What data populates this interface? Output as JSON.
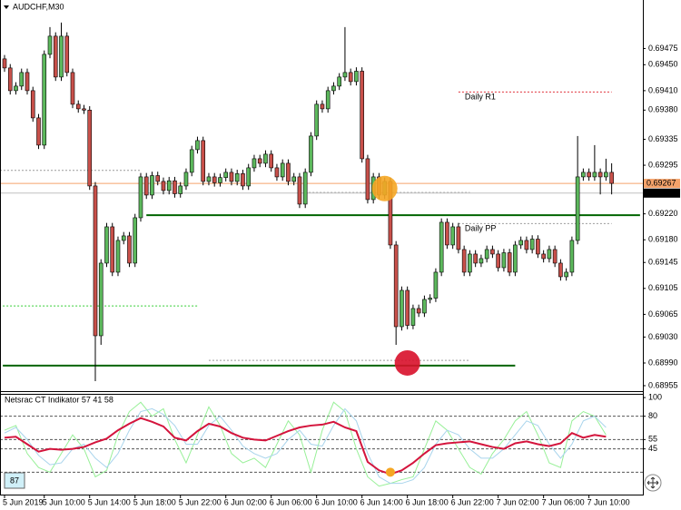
{
  "chart_data": [
    {
      "type": "candlestick",
      "title": "AUDCHF,M30",
      "xlim": [
        -0.8,
        112.5
      ],
      "ylim": [
        0.68948,
        0.69547
      ],
      "grid": false,
      "up_color": "#5cb85c",
      "down_color": "#c8504a",
      "yticks": [
        0.69475,
        {
          "value": 0.6945,
          "label": "0.69450"
        },
        {
          "value": 0.6941,
          "label": "0.69410"
        },
        {
          "value": 0.6938,
          "label": "0.69380"
        },
        0.69335,
        0.69295,
        {
          "value": 0.6922,
          "label": "0.69220"
        },
        {
          "value": 0.6918,
          "label": "0.69180"
        },
        0.69145,
        0.69105,
        0.69065,
        {
          "value": 0.6903,
          "label": "0.69030"
        },
        {
          "value": 0.6899,
          "label": "0.68990"
        },
        0.68955
      ],
      "xticks": [
        {
          "value": 0,
          "label": "5 Jun 2019"
        },
        {
          "value": 7,
          "label": "5 Jun 10:00"
        },
        {
          "value": 15,
          "label": "5 Jun 14:00"
        },
        {
          "value": 23,
          "label": "5 Jun 18:00"
        },
        {
          "value": 31,
          "label": "5 Jun 22:00"
        },
        {
          "value": 39,
          "label": "6 Jun 02:00"
        },
        {
          "value": 47,
          "label": "6 Jun 06:00"
        },
        {
          "value": 55,
          "label": "6 Jun 10:00"
        },
        {
          "value": 63,
          "label": "6 Jun 14:00"
        },
        {
          "value": 71,
          "label": "6 Jun 18:00"
        },
        {
          "value": 79,
          "label": "6 Jun 22:00"
        },
        {
          "value": 87,
          "label": "7 Jun 02:00"
        },
        {
          "value": 95,
          "label": "7 Jun 06:00"
        },
        {
          "value": 103,
          "label": "7 Jun 10:00"
        }
      ],
      "ohlc": [
        [
          0.69459,
          0.69465,
          0.69439,
          0.69445
        ],
        [
          0.69445,
          0.69451,
          0.69404,
          0.6941
        ],
        [
          0.6941,
          0.69423,
          0.69404,
          0.69417
        ],
        [
          0.69417,
          0.69444,
          0.69411,
          0.69438
        ],
        [
          0.69438,
          0.69444,
          0.69404,
          0.6941
        ],
        [
          0.6941,
          0.69416,
          0.69362,
          0.69368
        ],
        [
          0.69368,
          0.69374,
          0.6932,
          0.69326
        ],
        [
          0.69326,
          0.69472,
          0.6932,
          0.69466
        ],
        [
          0.69466,
          0.69508,
          0.6946,
          0.69494
        ],
        [
          0.69494,
          0.695,
          0.69425,
          0.69431
        ],
        [
          0.69431,
          0.69515,
          0.69425,
          0.69494
        ],
        [
          0.69494,
          0.695,
          0.69432,
          0.69438
        ],
        [
          0.69438,
          0.69444,
          0.69383,
          0.69389
        ],
        [
          0.69389,
          0.69395,
          0.69376,
          0.69382
        ],
        [
          0.69382,
          0.69388,
          0.69374,
          0.6938
        ],
        [
          0.6938,
          0.69386,
          0.69257,
          0.69263
        ],
        [
          0.69263,
          0.69269,
          0.68962,
          0.69032
        ],
        [
          0.69032,
          0.6915,
          0.69018,
          0.69144
        ],
        [
          0.69144,
          0.69206,
          0.69138,
          0.692
        ],
        [
          0.692,
          0.69206,
          0.69124,
          0.6913
        ],
        [
          0.6913,
          0.69185,
          0.69124,
          0.69179
        ],
        [
          0.69179,
          0.69192,
          0.69173,
          0.69186
        ],
        [
          0.69186,
          0.69192,
          0.69138,
          0.69144
        ],
        [
          0.69144,
          0.6922,
          0.69138,
          0.69214
        ],
        [
          0.69214,
          0.69283,
          0.69208,
          0.69277
        ],
        [
          0.69277,
          0.69283,
          0.69243,
          0.69249
        ],
        [
          0.69249,
          0.69285,
          0.69243,
          0.69279
        ],
        [
          0.69279,
          0.69285,
          0.69264,
          0.6927
        ],
        [
          0.6927,
          0.69276,
          0.6925,
          0.69256
        ],
        [
          0.69256,
          0.69277,
          0.6925,
          0.69271
        ],
        [
          0.69271,
          0.69277,
          0.69245,
          0.69251
        ],
        [
          0.69251,
          0.69269,
          0.69245,
          0.69263
        ],
        [
          0.69263,
          0.6929,
          0.69257,
          0.69284
        ],
        [
          0.69284,
          0.69325,
          0.69278,
          0.69319
        ],
        [
          0.69319,
          0.69339,
          0.69313,
          0.69333
        ],
        [
          0.69333,
          0.69339,
          0.69264,
          0.6927
        ],
        [
          0.6927,
          0.69283,
          0.69264,
          0.69277
        ],
        [
          0.69277,
          0.69283,
          0.69262,
          0.69268
        ],
        [
          0.69268,
          0.69282,
          0.69262,
          0.69276
        ],
        [
          0.69276,
          0.6929,
          0.6927,
          0.69284
        ],
        [
          0.69284,
          0.6929,
          0.69264,
          0.6927
        ],
        [
          0.6927,
          0.69288,
          0.69264,
          0.69282
        ],
        [
          0.69282,
          0.69288,
          0.69257,
          0.69263
        ],
        [
          0.69263,
          0.69297,
          0.69257,
          0.69291
        ],
        [
          0.69291,
          0.69311,
          0.69285,
          0.69305
        ],
        [
          0.69305,
          0.69311,
          0.69292,
          0.69298
        ],
        [
          0.69298,
          0.69318,
          0.69292,
          0.69312
        ],
        [
          0.69312,
          0.69318,
          0.69285,
          0.69291
        ],
        [
          0.69291,
          0.69297,
          0.69271,
          0.69277
        ],
        [
          0.69277,
          0.69304,
          0.69271,
          0.69298
        ],
        [
          0.69298,
          0.69304,
          0.69264,
          0.6927
        ],
        [
          0.6927,
          0.69283,
          0.69264,
          0.69277
        ],
        [
          0.69277,
          0.69283,
          0.69229,
          0.69235
        ],
        [
          0.69235,
          0.6929,
          0.69229,
          0.69284
        ],
        [
          0.69284,
          0.69346,
          0.69278,
          0.6934
        ],
        [
          0.6934,
          0.69395,
          0.69334,
          0.69389
        ],
        [
          0.69389,
          0.69395,
          0.69376,
          0.69382
        ],
        [
          0.69382,
          0.69416,
          0.69376,
          0.6941
        ],
        [
          0.6941,
          0.69423,
          0.69404,
          0.69417
        ],
        [
          0.69417,
          0.69437,
          0.69411,
          0.69431
        ],
        [
          0.69431,
          0.69508,
          0.69425,
          0.69438
        ],
        [
          0.69438,
          0.69444,
          0.69418,
          0.69424
        ],
        [
          0.69424,
          0.69446,
          0.69418,
          0.6944
        ],
        [
          0.6944,
          0.69446,
          0.69299,
          0.69305
        ],
        [
          0.69305,
          0.69311,
          0.69236,
          0.69242
        ],
        [
          0.69242,
          0.69283,
          0.69236,
          0.69277
        ],
        [
          0.69277,
          0.69283,
          0.69243,
          0.69249
        ],
        [
          0.69249,
          0.69276,
          0.69243,
          0.6927
        ],
        [
          0.6927,
          0.69276,
          0.69166,
          0.69172
        ],
        [
          0.69172,
          0.69178,
          0.69018,
          0.69046
        ],
        [
          0.69046,
          0.69108,
          0.6904,
          0.69102
        ],
        [
          0.69102,
          0.69108,
          0.69042,
          0.69048
        ],
        [
          0.69048,
          0.6908,
          0.69042,
          0.69074
        ],
        [
          0.69074,
          0.6908,
          0.69061,
          0.69067
        ],
        [
          0.69067,
          0.69094,
          0.69061,
          0.69088
        ],
        [
          0.69088,
          0.69096,
          0.69082,
          0.6909
        ],
        [
          0.6909,
          0.69136,
          0.69084,
          0.6913
        ],
        [
          0.6913,
          0.69213,
          0.69124,
          0.69207
        ],
        [
          0.69207,
          0.69213,
          0.69166,
          0.69172
        ],
        [
          0.69172,
          0.69206,
          0.69166,
          0.692
        ],
        [
          0.692,
          0.69206,
          0.69159,
          0.69165
        ],
        [
          0.69165,
          0.69171,
          0.69124,
          0.6913
        ],
        [
          0.6913,
          0.69164,
          0.69124,
          0.69158
        ],
        [
          0.69158,
          0.69164,
          0.69138,
          0.69144
        ],
        [
          0.69144,
          0.69157,
          0.69138,
          0.69151
        ],
        [
          0.69151,
          0.69171,
          0.69145,
          0.69165
        ],
        [
          0.69165,
          0.69171,
          0.69152,
          0.69158
        ],
        [
          0.69158,
          0.69164,
          0.69131,
          0.69137
        ],
        [
          0.69137,
          0.69166,
          0.69131,
          0.6916
        ],
        [
          0.6916,
          0.69166,
          0.69124,
          0.6913
        ],
        [
          0.6913,
          0.69178,
          0.69124,
          0.69172
        ],
        [
          0.69172,
          0.69185,
          0.69166,
          0.69179
        ],
        [
          0.69179,
          0.69185,
          0.69159,
          0.69165
        ],
        [
          0.69165,
          0.69187,
          0.69159,
          0.69181
        ],
        [
          0.69181,
          0.69187,
          0.69152,
          0.69158
        ],
        [
          0.69158,
          0.69164,
          0.69145,
          0.69151
        ],
        [
          0.69151,
          0.69171,
          0.69145,
          0.69165
        ],
        [
          0.69165,
          0.69171,
          0.69138,
          0.69144
        ],
        [
          0.69144,
          0.6915,
          0.69117,
          0.69123
        ],
        [
          0.69123,
          0.69136,
          0.69117,
          0.6913
        ],
        [
          0.6913,
          0.69185,
          0.69124,
          0.69179
        ],
        [
          0.69179,
          0.6934,
          0.69173,
          0.69277
        ],
        [
          0.69277,
          0.6929,
          0.69271,
          0.69284
        ],
        [
          0.69284,
          0.6929,
          0.69271,
          0.69277
        ],
        [
          0.69277,
          0.69326,
          0.69271,
          0.69284
        ],
        [
          0.69284,
          0.6929,
          0.6925,
          0.69277
        ],
        [
          0.69277,
          0.69305,
          0.69271,
          0.69284
        ],
        [
          0.69284,
          0.69298,
          0.6925,
          0.69267
        ]
      ],
      "price_lines": [
        {
          "value": 0.69267,
          "color": "#f5a36b"
        },
        {
          "value": 0.69252,
          "color": "#000000"
        }
      ],
      "levels": [
        {
          "value": 0.69287,
          "from": -0.8,
          "to": 24,
          "color": "#9a9a9a",
          "style": "dashed"
        },
        {
          "value": 0.69253,
          "from": 53,
          "to": 82,
          "color": "#9a9a9a",
          "style": "dashed"
        },
        {
          "value": 0.69218,
          "from": 25,
          "to": 112,
          "color": "#006400",
          "style": "solid"
        },
        {
          "value": 0.68986,
          "from": -0.3,
          "to": 90,
          "color": "#006400",
          "style": "solid"
        },
        {
          "name": "Daily R1",
          "value": 0.69408,
          "from": 80,
          "to": 107,
          "color": "#e0303a",
          "style": "dashed"
        },
        {
          "name": "Daily PP",
          "value": 0.69205,
          "from": 80,
          "to": 107,
          "color": "#9a9a9a",
          "style": "dashed"
        },
        {
          "value": 0.69078,
          "from": -0.3,
          "to": 34,
          "color": "#32cd32",
          "style": "dashed"
        },
        {
          "value": 0.68994,
          "from": 36,
          "to": 82,
          "color": "#9a9a9a",
          "style": "dashed"
        }
      ],
      "markers": [
        {
          "index": 67,
          "value": 0.69259,
          "color": "#f5a623"
        },
        {
          "index": 71,
          "value": 0.6899,
          "color": "#d8102a"
        }
      ]
    },
    {
      "type": "line",
      "title": "Netsrac CT Indikator 57 41 58",
      "xlim": [
        -0.8,
        112.5
      ],
      "ylim": [
        -4,
        104
      ],
      "yticks": [
        100,
        80,
        55,
        45
      ],
      "levels": [
        80,
        55,
        45,
        20
      ],
      "box_label": 87,
      "x": [
        0,
        2,
        4,
        6,
        8,
        10,
        12,
        14,
        16,
        18,
        20,
        22,
        24,
        26,
        28,
        30,
        32,
        34,
        36,
        38,
        40,
        42,
        44,
        46,
        48,
        50,
        52,
        54,
        56,
        58,
        60,
        62,
        64,
        66,
        68,
        70,
        72,
        74,
        76,
        78,
        80,
        82,
        84,
        86,
        88,
        90,
        92,
        94,
        96,
        98,
        100,
        102,
        104,
        106
      ],
      "series": [
        {
          "color": "#98f098",
          "width": 1,
          "values": [
            65,
            70,
            40,
            25,
            20,
            40,
            60,
            45,
            15,
            22,
            60,
            85,
            95,
            80,
            88,
            55,
            30,
            60,
            90,
            70,
            40,
            30,
            35,
            25,
            50,
            75,
            60,
            20,
            65,
            95,
            85,
            45,
            15,
            5,
            8,
            12,
            15,
            45,
            75,
            65,
            45,
            25,
            18,
            40,
            55,
            75,
            85,
            60,
            30,
            25,
            75,
            85,
            80,
            60
          ]
        },
        {
          "color": "#a8d4ec",
          "width": 1,
          "values": [
            62,
            68,
            55,
            38,
            28,
            30,
            45,
            50,
            35,
            25,
            40,
            65,
            85,
            88,
            82,
            70,
            50,
            50,
            70,
            80,
            65,
            48,
            40,
            35,
            40,
            55,
            65,
            50,
            48,
            70,
            88,
            75,
            40,
            15,
            8,
            8,
            12,
            25,
            50,
            65,
            60,
            45,
            35,
            35,
            45,
            60,
            75,
            70,
            50,
            35,
            50,
            75,
            80,
            68
          ]
        },
        {
          "color": "#d4143c",
          "width": 2,
          "values": [
            57,
            58,
            50,
            42,
            45,
            44,
            45,
            47,
            52,
            56,
            65,
            72,
            78,
            74,
            69,
            57,
            54,
            64,
            72,
            69,
            62,
            57,
            55,
            54,
            59,
            64,
            68,
            70,
            71,
            74,
            68,
            64,
            31,
            22,
            18,
            22,
            30,
            40,
            49,
            51,
            52,
            53,
            50,
            47,
            45,
            51,
            53,
            50,
            48,
            51,
            62,
            57,
            60,
            58
          ]
        }
      ],
      "markers": [
        {
          "index": 68,
          "value": 20,
          "color": "#f5a623"
        }
      ]
    }
  ]
}
